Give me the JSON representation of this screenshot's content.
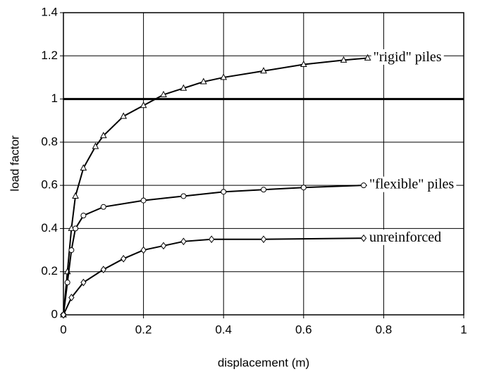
{
  "chart_data": {
    "type": "line",
    "x_label": "displacement (m)",
    "y_label": "load factor",
    "xlim": [
      0,
      1
    ],
    "ylim": [
      0,
      1.4
    ],
    "xticks": [
      0,
      0.2,
      0.4,
      0.6,
      0.8,
      1
    ],
    "yticks": [
      0,
      0.2,
      0.4,
      0.6,
      0.8,
      1,
      1.2,
      1.4
    ],
    "grid": true,
    "reference_line": 1,
    "series": [
      {
        "name": "\"rigid\" piles",
        "color": "#000000",
        "marker": "triangle",
        "x": [
          0,
          0.01,
          0.02,
          0.03,
          0.05,
          0.08,
          0.1,
          0.15,
          0.2,
          0.25,
          0.3,
          0.35,
          0.4,
          0.5,
          0.6,
          0.7,
          0.76
        ],
        "values": [
          0,
          0.2,
          0.4,
          0.55,
          0.68,
          0.78,
          0.83,
          0.92,
          0.97,
          1.02,
          1.05,
          1.08,
          1.1,
          1.13,
          1.16,
          1.18,
          1.19
        ]
      },
      {
        "name": "\"flexible\" piles",
        "color": "#000000",
        "marker": "circle",
        "x": [
          0,
          0.01,
          0.02,
          0.03,
          0.05,
          0.1,
          0.2,
          0.3,
          0.4,
          0.5,
          0.6,
          0.75
        ],
        "values": [
          0,
          0.15,
          0.3,
          0.4,
          0.46,
          0.5,
          0.53,
          0.55,
          0.57,
          0.58,
          0.59,
          0.6
        ]
      },
      {
        "name": "unreinforced",
        "color": "#000000",
        "marker": "diamond",
        "x": [
          0,
          0.02,
          0.05,
          0.1,
          0.15,
          0.2,
          0.25,
          0.3,
          0.37,
          0.5,
          0.75
        ],
        "values": [
          0,
          0.08,
          0.15,
          0.21,
          0.26,
          0.3,
          0.32,
          0.34,
          0.35,
          0.35,
          0.355
        ]
      }
    ]
  }
}
